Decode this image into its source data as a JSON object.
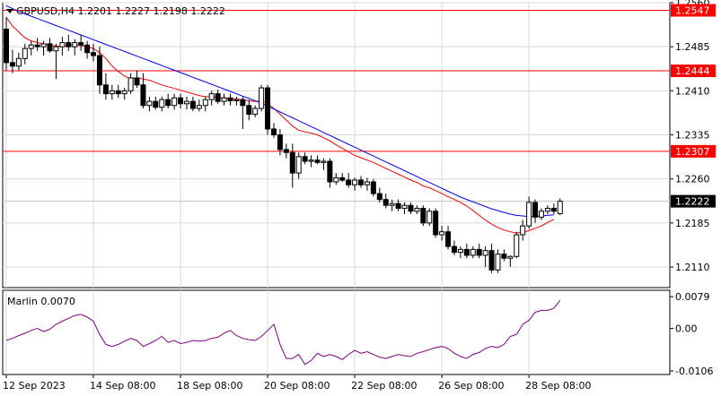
{
  "chart_data": [
    {
      "type": "candlestick",
      "symbol_line": "GBPUSD,H4  1.2201 1.2227 1.2198 1.2222",
      "ylim": [
        1.2075,
        1.256
      ],
      "y_ticks": [
        "1.2560",
        "1.2485",
        "1.2410",
        "1.2335",
        "1.2260",
        "1.2185",
        "1.2110"
      ],
      "x_tick_labels": [
        "12 Sep 2023",
        "14 Sep 08:00",
        "18 Sep 08:00",
        "20 Sep 08:00",
        "22 Sep 08:00",
        "26 Sep 08:00",
        "28 Sep 08:00"
      ],
      "x_tick_bars": [
        0,
        14,
        28,
        42,
        56,
        70,
        84
      ],
      "horizontal_levels": [
        {
          "label": "1.2547",
          "value": 1.2547
        },
        {
          "label": "1.2444",
          "value": 1.2444
        },
        {
          "label": "1.2307",
          "value": 1.2307
        }
      ],
      "current_price": {
        "label": "1.2222",
        "value": 1.2222
      },
      "candles": [
        [
          1.2515,
          1.2535,
          1.2445,
          1.2458
        ],
        [
          1.2458,
          1.248,
          1.244,
          1.2452
        ],
        [
          1.2452,
          1.2475,
          1.2445,
          1.2465
        ],
        [
          1.2465,
          1.249,
          1.2455,
          1.2482
        ],
        [
          1.2482,
          1.2495,
          1.247,
          1.2488
        ],
        [
          1.2488,
          1.25,
          1.2478,
          1.2485
        ],
        [
          1.2485,
          1.2495,
          1.247,
          1.249
        ],
        [
          1.249,
          1.25,
          1.2475,
          1.2478
        ],
        [
          1.2478,
          1.249,
          1.243,
          1.2485
        ],
        [
          1.2485,
          1.2502,
          1.247,
          1.2492
        ],
        [
          1.2492,
          1.2505,
          1.2478,
          1.2485
        ],
        [
          1.2485,
          1.2498,
          1.247,
          1.2492
        ],
        [
          1.2492,
          1.2505,
          1.2478,
          1.2488
        ],
        [
          1.2488,
          1.2495,
          1.2465,
          1.2475
        ],
        [
          1.2475,
          1.249,
          1.246,
          1.247
        ],
        [
          1.247,
          1.2485,
          1.2405,
          1.242
        ],
        [
          1.242,
          1.244,
          1.2395,
          1.2405
        ],
        [
          1.2405,
          1.242,
          1.2395,
          1.241
        ],
        [
          1.241,
          1.242,
          1.2398,
          1.2405
        ],
        [
          1.2405,
          1.2415,
          1.2395,
          1.241
        ],
        [
          1.241,
          1.244,
          1.2405,
          1.2432
        ],
        [
          1.2432,
          1.2445,
          1.2415,
          1.242
        ],
        [
          1.242,
          1.244,
          1.238,
          1.2385
        ],
        [
          1.2385,
          1.24,
          1.2375,
          1.2392
        ],
        [
          1.2392,
          1.24,
          1.2378,
          1.2382
        ],
        [
          1.2382,
          1.24,
          1.2375,
          1.2395
        ],
        [
          1.2395,
          1.2405,
          1.238,
          1.2385
        ],
        [
          1.2385,
          1.2405,
          1.2378,
          1.2398
        ],
        [
          1.2398,
          1.2405,
          1.238,
          1.2388
        ],
        [
          1.2388,
          1.24,
          1.2378,
          1.2392
        ],
        [
          1.2392,
          1.24,
          1.2375,
          1.238
        ],
        [
          1.238,
          1.2395,
          1.2375,
          1.2385
        ],
        [
          1.2385,
          1.24,
          1.2375,
          1.2395
        ],
        [
          1.2395,
          1.241,
          1.2385,
          1.2405
        ],
        [
          1.2405,
          1.2412,
          1.2388,
          1.2392
        ],
        [
          1.2392,
          1.2405,
          1.2385,
          1.2398
        ],
        [
          1.2398,
          1.2405,
          1.2385,
          1.2393
        ],
        [
          1.2393,
          1.24,
          1.2385,
          1.2395
        ],
        [
          1.2395,
          1.24,
          1.2345,
          1.2385
        ],
        [
          1.2385,
          1.2395,
          1.236,
          1.237
        ],
        [
          1.237,
          1.2385,
          1.2365,
          1.238
        ],
        [
          1.238,
          1.242,
          1.2375,
          1.2415
        ],
        [
          1.2415,
          1.242,
          1.2335,
          1.2345
        ],
        [
          1.2345,
          1.2355,
          1.233,
          1.2335
        ],
        [
          1.2335,
          1.2345,
          1.23,
          1.231
        ],
        [
          1.231,
          1.232,
          1.2295,
          1.2305
        ],
        [
          1.2305,
          1.232,
          1.2245,
          1.227
        ],
        [
          1.227,
          1.2305,
          1.226,
          1.2298
        ],
        [
          1.2298,
          1.2305,
          1.2285,
          1.229
        ],
        [
          1.229,
          1.23,
          1.228,
          1.2292
        ],
        [
          1.2292,
          1.23,
          1.2285,
          1.2288
        ],
        [
          1.2288,
          1.2295,
          1.2275,
          1.229
        ],
        [
          1.229,
          1.2295,
          1.2245,
          1.2255
        ],
        [
          1.2255,
          1.227,
          1.225,
          1.2262
        ],
        [
          1.2262,
          1.227,
          1.2255,
          1.2258
        ],
        [
          1.2258,
          1.227,
          1.2245,
          1.225
        ],
        [
          1.225,
          1.2262,
          1.224,
          1.2258
        ],
        [
          1.2258,
          1.2265,
          1.2245,
          1.225
        ],
        [
          1.225,
          1.2262,
          1.224,
          1.2255
        ],
        [
          1.2255,
          1.226,
          1.223,
          1.2235
        ],
        [
          1.2235,
          1.2245,
          1.222,
          1.2225
        ],
        [
          1.2225,
          1.2235,
          1.221,
          1.2215
        ],
        [
          1.2215,
          1.2225,
          1.2205,
          1.2218
        ],
        [
          1.2218,
          1.2225,
          1.2205,
          1.221
        ],
        [
          1.221,
          1.222,
          1.22,
          1.2215
        ],
        [
          1.2215,
          1.222,
          1.22,
          1.2205
        ],
        [
          1.2205,
          1.2215,
          1.22,
          1.221
        ],
        [
          1.221,
          1.2215,
          1.218,
          1.2185
        ],
        [
          1.2185,
          1.221,
          1.218,
          1.2205
        ],
        [
          1.2205,
          1.221,
          1.216,
          1.2165
        ],
        [
          1.2165,
          1.218,
          1.2155,
          1.217
        ],
        [
          1.217,
          1.218,
          1.214,
          1.2145
        ],
        [
          1.2145,
          1.2155,
          1.213,
          1.2135
        ],
        [
          1.2135,
          1.2145,
          1.2125,
          1.214
        ],
        [
          1.214,
          1.215,
          1.2125,
          1.213
        ],
        [
          1.213,
          1.2145,
          1.2125,
          1.214
        ],
        [
          1.214,
          1.215,
          1.2125,
          1.213
        ],
        [
          1.213,
          1.2145,
          1.211,
          1.2138
        ],
        [
          1.2138,
          1.215,
          1.21,
          1.2105
        ],
        [
          1.2105,
          1.214,
          1.21,
          1.2132
        ],
        [
          1.2132,
          1.214,
          1.212,
          1.2125
        ],
        [
          1.2125,
          1.213,
          1.211,
          1.2128
        ],
        [
          1.2128,
          1.217,
          1.2125,
          1.2165
        ],
        [
          1.2165,
          1.219,
          1.2155,
          1.218
        ],
        [
          1.218,
          1.223,
          1.2175,
          1.222
        ],
        [
          1.222,
          1.2225,
          1.2185,
          1.2195
        ],
        [
          1.2195,
          1.221,
          1.219,
          1.2205
        ],
        [
          1.2205,
          1.2215,
          1.22,
          1.221
        ],
        [
          1.221,
          1.2218,
          1.22,
          1.2205
        ],
        [
          1.2201,
          1.2227,
          1.2198,
          1.2222
        ]
      ],
      "series": [
        {
          "name": "",
          "color": "#ff0000",
          "values": [
            1.2535,
            1.252,
            1.251,
            1.25,
            1.2495,
            1.2492,
            1.249,
            1.2488,
            1.2486,
            1.2486,
            1.2487,
            1.2488,
            1.2487,
            1.2485,
            1.2482,
            1.2475,
            1.2465,
            1.2452,
            1.2443,
            1.2435,
            1.243,
            1.2432,
            1.243,
            1.2428,
            1.2424,
            1.242,
            1.2417,
            1.2414,
            1.2411,
            1.2408,
            1.2405,
            1.2402,
            1.24,
            1.24,
            1.2399,
            1.2398,
            1.2397,
            1.2396,
            1.2395,
            1.2393,
            1.2392,
            1.2393,
            1.2388,
            1.238,
            1.237,
            1.236,
            1.235,
            1.2343,
            1.234,
            1.2338,
            1.2335,
            1.233,
            1.2325,
            1.2318,
            1.2312,
            1.2306,
            1.23,
            1.2296,
            1.2292,
            1.2288,
            1.2283,
            1.2278,
            1.2273,
            1.2268,
            1.2263,
            1.2258,
            1.2254,
            1.2248,
            1.2245,
            1.224,
            1.2235,
            1.223,
            1.2225,
            1.222,
            1.2214,
            1.2206,
            1.2198,
            1.219,
            1.2183,
            1.2177,
            1.2173,
            1.217,
            1.2168,
            1.2169,
            1.2172,
            1.2176,
            1.218,
            1.2186,
            1.2191
          ]
        },
        {
          "name": "",
          "color": "#0000ff",
          "values": [
            1.2555,
            1.255,
            1.2545,
            1.2541,
            1.2537,
            1.2533,
            1.2529,
            1.2525,
            1.2521,
            1.2517,
            1.2513,
            1.2509,
            1.2505,
            1.2501,
            1.2497,
            1.2493,
            1.2489,
            1.2485,
            1.2481,
            1.2477,
            1.2473,
            1.2469,
            1.2465,
            1.2461,
            1.2457,
            1.2453,
            1.2449,
            1.2445,
            1.2441,
            1.2437,
            1.2433,
            1.2429,
            1.2425,
            1.2421,
            1.2417,
            1.2413,
            1.2409,
            1.2405,
            1.2401,
            1.2397,
            1.2393,
            1.2389,
            1.2384,
            1.2379,
            1.2374,
            1.2369,
            1.2364,
            1.2359,
            1.2354,
            1.2349,
            1.2344,
            1.2339,
            1.2334,
            1.2329,
            1.2324,
            1.2319,
            1.2314,
            1.2309,
            1.2304,
            1.2299,
            1.2294,
            1.2289,
            1.2284,
            1.2279,
            1.2274,
            1.2269,
            1.2264,
            1.2259,
            1.2254,
            1.2249,
            1.2244,
            1.2239,
            1.2234,
            1.2229,
            1.2225,
            1.2221,
            1.2217,
            1.2213,
            1.2209,
            1.2206,
            1.2203,
            1.22,
            1.2198,
            1.2197,
            1.2196,
            1.2196,
            1.2197,
            1.2198,
            1.2199
          ]
        }
      ]
    },
    {
      "type": "line",
      "title": "Marlin 0.0070",
      "ylim": [
        -0.0115,
        0.0095
      ],
      "y_ticks": [
        "0.0079",
        "0.00",
        "-0.0106"
      ],
      "series": [
        {
          "name": "Marlin",
          "color": "#800080",
          "values": [
            -0.003,
            -0.0025,
            -0.0018,
            -0.0012,
            -0.0005,
            0.0,
            -0.0008,
            -0.0002,
            0.001,
            0.0018,
            0.0025,
            0.0032,
            0.0035,
            0.0028,
            0.0018,
            -0.0015,
            -0.004,
            -0.0045,
            -0.004,
            -0.0032,
            -0.0025,
            -0.003,
            -0.0045,
            -0.0038,
            -0.003,
            -0.002,
            -0.0035,
            -0.003,
            -0.0038,
            -0.0035,
            -0.003,
            -0.0032,
            -0.003,
            -0.0025,
            -0.0022,
            -0.0012,
            -0.0005,
            -0.0018,
            -0.0025,
            -0.0028,
            -0.003,
            -0.002,
            -0.0005,
            0.001,
            -0.004,
            -0.0075,
            -0.0075,
            -0.0065,
            -0.009,
            -0.008,
            -0.0062,
            -0.007,
            -0.0065,
            -0.007,
            -0.0078,
            -0.0065,
            -0.0055,
            -0.0062,
            -0.0058,
            -0.0065,
            -0.0072,
            -0.0075,
            -0.007,
            -0.0065,
            -0.0068,
            -0.007,
            -0.0062,
            -0.0058,
            -0.0053,
            -0.0048,
            -0.0045,
            -0.005,
            -0.0062,
            -0.007,
            -0.0075,
            -0.0065,
            -0.006,
            -0.005,
            -0.0045,
            -0.0048,
            -0.004,
            -0.002,
            -0.0015,
            0.001,
            0.002,
            0.004,
            0.0045,
            0.0045,
            0.005,
            0.007
          ]
        }
      ]
    }
  ]
}
